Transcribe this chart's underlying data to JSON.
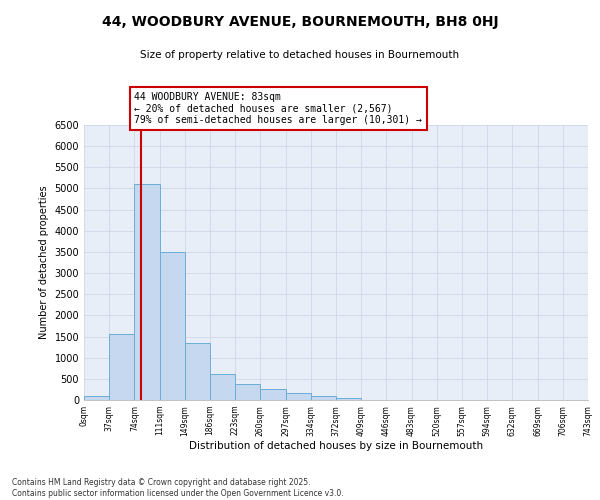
{
  "title": "44, WOODBURY AVENUE, BOURNEMOUTH, BH8 0HJ",
  "subtitle": "Size of property relative to detached houses in Bournemouth",
  "xlabel": "Distribution of detached houses by size in Bournemouth",
  "ylabel": "Number of detached properties",
  "bin_labels": [
    "0sqm",
    "37sqm",
    "74sqm",
    "111sqm",
    "149sqm",
    "186sqm",
    "223sqm",
    "260sqm",
    "297sqm",
    "334sqm",
    "372sqm",
    "409sqm",
    "446sqm",
    "483sqm",
    "520sqm",
    "557sqm",
    "594sqm",
    "632sqm",
    "669sqm",
    "706sqm",
    "743sqm"
  ],
  "bar_values": [
    100,
    1550,
    5100,
    3500,
    1350,
    620,
    380,
    270,
    175,
    100,
    50,
    0,
    0,
    0,
    0,
    0,
    0,
    0,
    0,
    0
  ],
  "bar_color": "#c5d8f0",
  "bar_edge_color": "#6baed6",
  "vline_x": 83,
  "vline_color": "#cc0000",
  "annotation_text": "44 WOODBURY AVENUE: 83sqm\n← 20% of detached houses are smaller (2,567)\n79% of semi-detached houses are larger (10,301) →",
  "annotation_box_color": "#ffffff",
  "annotation_box_edge": "#cc0000",
  "ylim": [
    0,
    6500
  ],
  "yticks": [
    0,
    500,
    1000,
    1500,
    2000,
    2500,
    3000,
    3500,
    4000,
    4500,
    5000,
    5500,
    6000,
    6500
  ],
  "bg_color": "#e8eef8",
  "grid_color": "#d0d8e8",
  "footer": "Contains HM Land Registry data © Crown copyright and database right 2025.\nContains public sector information licensed under the Open Government Licence v3.0.",
  "bin_width": 37
}
